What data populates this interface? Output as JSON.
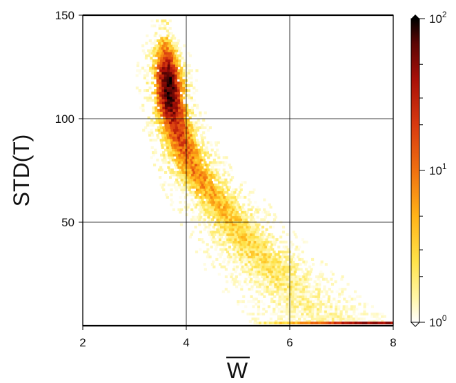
{
  "chart_data": {
    "type": "heatmap",
    "xlabel": "W",
    "xlabel_overline": true,
    "ylabel": "STD(T)",
    "xlim": [
      2,
      8
    ],
    "ylim": [
      0,
      150
    ],
    "x_ticks": [
      2,
      4,
      6,
      8
    ],
    "x_tick_labels": [
      "2",
      "4",
      "6",
      "8"
    ],
    "y_ticks": [
      50,
      100,
      150
    ],
    "y_tick_labels": [
      "50",
      "100",
      "150"
    ],
    "grid": true,
    "colorbar": {
      "scale": "log",
      "range": [
        1,
        100
      ],
      "labels": [
        {
          "value": 100,
          "base": "10",
          "exp": "2"
        },
        {
          "value": 10,
          "base": "10",
          "exp": "1"
        },
        {
          "value": 1,
          "base": "10",
          "exp": "0"
        }
      ],
      "colormap": [
        "#ffffff",
        "#fff6a8",
        "#ffe34a",
        "#ffb318",
        "#f07010",
        "#d83a10",
        "#a81008",
        "#5a0504",
        "#000000"
      ]
    },
    "density_ridge": [
      {
        "x": 3.55,
        "y": 142,
        "halfwidth_x": 0.12,
        "log_density": 0.35
      },
      {
        "x": 3.58,
        "y": 130,
        "halfwidth_x": 0.22,
        "log_density": 1.2
      },
      {
        "x": 3.62,
        "y": 120,
        "halfwidth_x": 0.25,
        "log_density": 1.85
      },
      {
        "x": 3.65,
        "y": 110,
        "halfwidth_x": 0.26,
        "log_density": 1.9
      },
      {
        "x": 3.72,
        "y": 100,
        "halfwidth_x": 0.28,
        "log_density": 1.45
      },
      {
        "x": 3.85,
        "y": 90,
        "halfwidth_x": 0.3,
        "log_density": 1.2
      },
      {
        "x": 4.0,
        "y": 80,
        "halfwidth_x": 0.33,
        "log_density": 1.0
      },
      {
        "x": 4.25,
        "y": 70,
        "halfwidth_x": 0.36,
        "log_density": 0.85
      },
      {
        "x": 4.55,
        "y": 60,
        "halfwidth_x": 0.4,
        "log_density": 0.7
      },
      {
        "x": 4.85,
        "y": 50,
        "halfwidth_x": 0.44,
        "log_density": 0.6
      },
      {
        "x": 5.15,
        "y": 40,
        "halfwidth_x": 0.48,
        "log_density": 0.55
      },
      {
        "x": 5.5,
        "y": 30,
        "halfwidth_x": 0.52,
        "log_density": 0.45
      },
      {
        "x": 5.85,
        "y": 20,
        "halfwidth_x": 0.55,
        "log_density": 0.35
      },
      {
        "x": 6.2,
        "y": 11,
        "halfwidth_x": 0.55,
        "log_density": 0.25
      },
      {
        "x": 6.6,
        "y": 4,
        "halfwidth_x": 0.6,
        "log_density": 0.2
      }
    ],
    "floor_band": {
      "x_start": 5.3,
      "x_end": 8.0,
      "y": 1,
      "log_density": [
        0.2,
        1.5
      ]
    }
  }
}
